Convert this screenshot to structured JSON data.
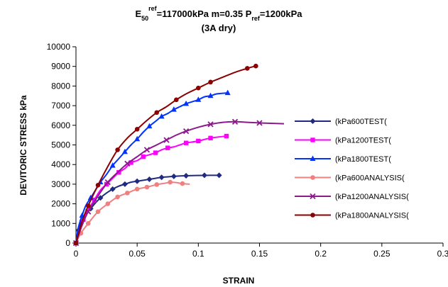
{
  "chart_data": {
    "type": "line",
    "title": {
      "line1_parts": [
        {
          "text": "E",
          "style": "normal"
        },
        {
          "text": "50",
          "style": "sub"
        },
        {
          "text": "ref",
          "style": "sup"
        },
        {
          "text": "=117000kPa  m=0.35 P",
          "style": "normal"
        },
        {
          "text": "ref",
          "style": "sub"
        },
        {
          "text": "=1200kPa",
          "style": "normal"
        }
      ],
      "line2": "(3A dry)"
    },
    "xlabel": "STRAIN",
    "ylabel": "DEVITORIC STRESS kPa",
    "xlim": [
      0,
      0.3
    ],
    "ylim": [
      0,
      10000
    ],
    "x_ticks": [
      {
        "value": 0,
        "label": "0"
      },
      {
        "value": 0.05,
        "label": "0.05"
      },
      {
        "value": 0.1,
        "label": "0.1"
      },
      {
        "value": 0.15,
        "label": "0.15"
      },
      {
        "value": 0.2,
        "label": "0.2"
      },
      {
        "value": 0.25,
        "label": "0.25"
      },
      {
        "value": 0.3,
        "label": "0.3"
      }
    ],
    "y_ticks": [
      {
        "value": 0,
        "label": "0"
      },
      {
        "value": 1000,
        "label": "1000"
      },
      {
        "value": 2000,
        "label": "2000"
      },
      {
        "value": 3000,
        "label": "3000"
      },
      {
        "value": 4000,
        "label": "4000"
      },
      {
        "value": 5000,
        "label": "5000"
      },
      {
        "value": 6000,
        "label": "6000"
      },
      {
        "value": 7000,
        "label": "7000"
      },
      {
        "value": 8000,
        "label": "8000"
      },
      {
        "value": 9000,
        "label": "9000"
      },
      {
        "value": 10000,
        "label": "10000"
      }
    ],
    "grid": false,
    "legend_position": "right",
    "series": [
      {
        "name": "(kPa600TEST(",
        "color": "#1f2a80",
        "marker": "diamond",
        "points": [
          [
            0,
            0
          ],
          [
            0.002,
            650
          ],
          [
            0.005,
            1150
          ],
          [
            0.008,
            1450
          ],
          [
            0.012,
            1750
          ],
          [
            0.016,
            2050
          ],
          [
            0.02,
            2300
          ],
          [
            0.025,
            2550
          ],
          [
            0.03,
            2750
          ],
          [
            0.035,
            2900
          ],
          [
            0.04,
            3000
          ],
          [
            0.045,
            3100
          ],
          [
            0.05,
            3150
          ],
          [
            0.055,
            3200
          ],
          [
            0.06,
            3250
          ],
          [
            0.065,
            3300
          ],
          [
            0.07,
            3350
          ],
          [
            0.08,
            3400
          ],
          [
            0.09,
            3430
          ],
          [
            0.105,
            3450
          ],
          [
            0.117,
            3450
          ]
        ]
      },
      {
        "name": "(kPa1200TEST(",
        "color": "#ff00ff",
        "marker": "square",
        "points": [
          [
            0,
            0
          ],
          [
            0.003,
            700
          ],
          [
            0.006,
            1200
          ],
          [
            0.01,
            1700
          ],
          [
            0.015,
            2200
          ],
          [
            0.02,
            2700
          ],
          [
            0.025,
            3000
          ],
          [
            0.03,
            3300
          ],
          [
            0.035,
            3600
          ],
          [
            0.04,
            3800
          ],
          [
            0.045,
            4100
          ],
          [
            0.05,
            4200
          ],
          [
            0.055,
            4400
          ],
          [
            0.06,
            4500
          ],
          [
            0.065,
            4600
          ],
          [
            0.07,
            4750
          ],
          [
            0.075,
            4850
          ],
          [
            0.08,
            4900
          ],
          [
            0.085,
            5000
          ],
          [
            0.09,
            5100
          ],
          [
            0.1,
            5200
          ],
          [
            0.11,
            5350
          ],
          [
            0.123,
            5450
          ]
        ]
      },
      {
        "name": "(kPa1800TEST(",
        "color": "#0033ff",
        "marker": "triangle",
        "points": [
          [
            0,
            0
          ],
          [
            0.002,
            800
          ],
          [
            0.005,
            1400
          ],
          [
            0.008,
            1900
          ],
          [
            0.012,
            2300
          ],
          [
            0.016,
            2700
          ],
          [
            0.02,
            3100
          ],
          [
            0.025,
            3500
          ],
          [
            0.03,
            3950
          ],
          [
            0.035,
            4300
          ],
          [
            0.04,
            4650
          ],
          [
            0.045,
            5000
          ],
          [
            0.05,
            5300
          ],
          [
            0.055,
            5650
          ],
          [
            0.06,
            5950
          ],
          [
            0.065,
            6200
          ],
          [
            0.07,
            6450
          ],
          [
            0.075,
            6600
          ],
          [
            0.08,
            6800
          ],
          [
            0.085,
            6950
          ],
          [
            0.09,
            7100
          ],
          [
            0.095,
            7200
          ],
          [
            0.1,
            7300
          ],
          [
            0.105,
            7450
          ],
          [
            0.11,
            7500
          ],
          [
            0.115,
            7600
          ],
          [
            0.124,
            7650
          ]
        ]
      },
      {
        "name": "(kPa600ANALYSIS(",
        "color": "#f08080",
        "marker": "circle",
        "points": [
          [
            0,
            0
          ],
          [
            0.004,
            500
          ],
          [
            0.01,
            1000
          ],
          [
            0.018,
            1600
          ],
          [
            0.026,
            2000
          ],
          [
            0.034,
            2350
          ],
          [
            0.042,
            2550
          ],
          [
            0.05,
            2750
          ],
          [
            0.058,
            2850
          ],
          [
            0.066,
            2980
          ],
          [
            0.073,
            3050
          ],
          [
            0.077,
            3100
          ],
          [
            0.082,
            3080
          ],
          [
            0.087,
            3030
          ],
          [
            0.093,
            3000
          ]
        ]
      },
      {
        "name": "(kPa1200ANALYSIS(",
        "color": "#8b1a8b",
        "marker": "cross",
        "points": [
          [
            0,
            0
          ],
          [
            0.005,
            900
          ],
          [
            0.01,
            1600
          ],
          [
            0.018,
            2400
          ],
          [
            0.026,
            3100
          ],
          [
            0.034,
            3600
          ],
          [
            0.042,
            4050
          ],
          [
            0.05,
            4400
          ],
          [
            0.058,
            4750
          ],
          [
            0.066,
            5000
          ],
          [
            0.074,
            5250
          ],
          [
            0.082,
            5500
          ],
          [
            0.09,
            5700
          ],
          [
            0.1,
            5900
          ],
          [
            0.11,
            6050
          ],
          [
            0.12,
            6150
          ],
          [
            0.13,
            6180
          ],
          [
            0.14,
            6150
          ],
          [
            0.15,
            6120
          ],
          [
            0.17,
            6080
          ]
        ]
      },
      {
        "name": "(kPa1800ANALYSIS(",
        "color": "#8b0000",
        "marker": "circle",
        "points": [
          [
            0,
            0
          ],
          [
            0.005,
            1100
          ],
          [
            0.01,
            1900
          ],
          [
            0.018,
            2950
          ],
          [
            0.026,
            3900
          ],
          [
            0.034,
            4750
          ],
          [
            0.042,
            5350
          ],
          [
            0.05,
            5800
          ],
          [
            0.058,
            6250
          ],
          [
            0.066,
            6650
          ],
          [
            0.074,
            6950
          ],
          [
            0.082,
            7300
          ],
          [
            0.09,
            7600
          ],
          [
            0.1,
            7900
          ],
          [
            0.11,
            8200
          ],
          [
            0.12,
            8450
          ],
          [
            0.13,
            8700
          ],
          [
            0.14,
            8900
          ],
          [
            0.147,
            9020
          ]
        ]
      }
    ],
    "markers_shown": {
      "(kPa600TEST(": [
        [
          0,
          0
        ],
        [
          0.002,
          650
        ],
        [
          0.005,
          1150
        ],
        [
          0.012,
          1750
        ],
        [
          0.02,
          2300
        ],
        [
          0.03,
          2750
        ],
        [
          0.04,
          3000
        ],
        [
          0.05,
          3150
        ],
        [
          0.06,
          3250
        ],
        [
          0.07,
          3350
        ],
        [
          0.08,
          3400
        ],
        [
          0.09,
          3430
        ],
        [
          0.105,
          3450
        ],
        [
          0.117,
          3450
        ]
      ],
      "(kPa1200TEST(": [
        [
          0,
          0
        ],
        [
          0.006,
          1200
        ],
        [
          0.015,
          2200
        ],
        [
          0.025,
          3000
        ],
        [
          0.035,
          3600
        ],
        [
          0.045,
          4100
        ],
        [
          0.055,
          4400
        ],
        [
          0.065,
          4600
        ],
        [
          0.075,
          4850
        ],
        [
          0.09,
          5100
        ],
        [
          0.1,
          5200
        ],
        [
          0.11,
          5350
        ],
        [
          0.123,
          5450
        ]
      ],
      "(kPa1800TEST(": [
        [
          0,
          0
        ],
        [
          0.005,
          1400
        ],
        [
          0.012,
          2300
        ],
        [
          0.02,
          3100
        ],
        [
          0.03,
          3950
        ],
        [
          0.04,
          4650
        ],
        [
          0.05,
          5300
        ],
        [
          0.06,
          5950
        ],
        [
          0.07,
          6450
        ],
        [
          0.08,
          6800
        ],
        [
          0.09,
          7100
        ],
        [
          0.1,
          7300
        ],
        [
          0.11,
          7500
        ],
        [
          0.124,
          7650
        ]
      ],
      "(kPa600ANALYSIS(": [
        [
          0,
          0
        ],
        [
          0.004,
          500
        ],
        [
          0.01,
          1000
        ],
        [
          0.018,
          1600
        ],
        [
          0.026,
          2000
        ],
        [
          0.034,
          2350
        ],
        [
          0.042,
          2550
        ],
        [
          0.05,
          2750
        ],
        [
          0.058,
          2850
        ],
        [
          0.066,
          2980
        ],
        [
          0.077,
          3100
        ],
        [
          0.087,
          3030
        ]
      ],
      "(kPa1200ANALYSIS(": [
        [
          0,
          0
        ],
        [
          0.01,
          1600
        ],
        [
          0.026,
          3100
        ],
        [
          0.042,
          4050
        ],
        [
          0.058,
          4750
        ],
        [
          0.074,
          5250
        ],
        [
          0.09,
          5700
        ],
        [
          0.11,
          6050
        ],
        [
          0.13,
          6180
        ],
        [
          0.15,
          6120
        ]
      ],
      "(kPa1800ANALYSIS(": [
        [
          0,
          0
        ],
        [
          0.01,
          1900
        ],
        [
          0.018,
          2950
        ],
        [
          0.034,
          4750
        ],
        [
          0.05,
          5800
        ],
        [
          0.066,
          6650
        ],
        [
          0.082,
          7300
        ],
        [
          0.1,
          7900
        ],
        [
          0.11,
          8200
        ],
        [
          0.14,
          8900
        ],
        [
          0.147,
          9020
        ]
      ]
    }
  }
}
